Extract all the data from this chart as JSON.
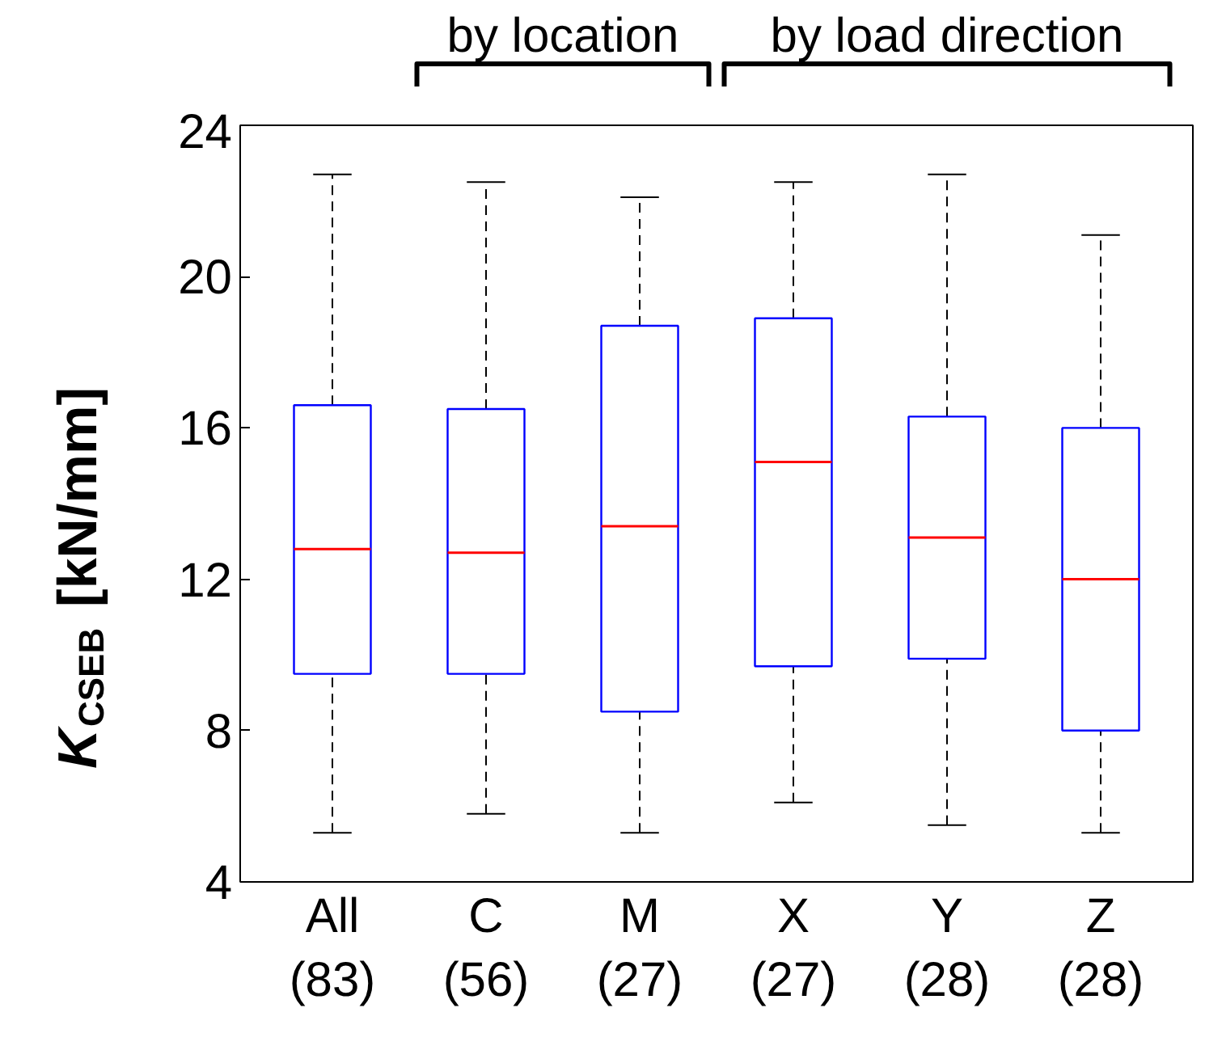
{
  "chart_data": {
    "type": "box",
    "ylabel": "K$_{CSEB}$ [kN/mm]",
    "categories": [
      "All\n(83)",
      "C\n(56)",
      "M\n(27)",
      "X\n(27)",
      "Y\n(28)",
      "Z\n(28)"
    ],
    "boxes": [
      {
        "low": 5.3,
        "q1": 9.5,
        "median": 12.8,
        "q3": 16.6,
        "high": 22.7
      },
      {
        "low": 5.8,
        "q1": 9.5,
        "median": 12.7,
        "q3": 16.5,
        "high": 22.5
      },
      {
        "low": 5.3,
        "q1": 8.5,
        "median": 13.4,
        "q3": 18.7,
        "high": 22.1
      },
      {
        "low": 6.1,
        "q1": 9.7,
        "median": 15.1,
        "q3": 18.9,
        "high": 22.5
      },
      {
        "low": 5.5,
        "q1": 9.9,
        "median": 13.1,
        "q3": 16.3,
        "high": 22.7
      },
      {
        "low": 5.3,
        "q1": 8.0,
        "median": 12.0,
        "q3": 16.0,
        "high": 21.1
      }
    ],
    "color": "#0000ff",
    "ylim": [
      4,
      24
    ],
    "yticks": [
      4,
      8,
      12,
      16,
      20,
      24
    ],
    "grid": false,
    "annotations": [
      "by location",
      "by load direction"
    ]
  }
}
